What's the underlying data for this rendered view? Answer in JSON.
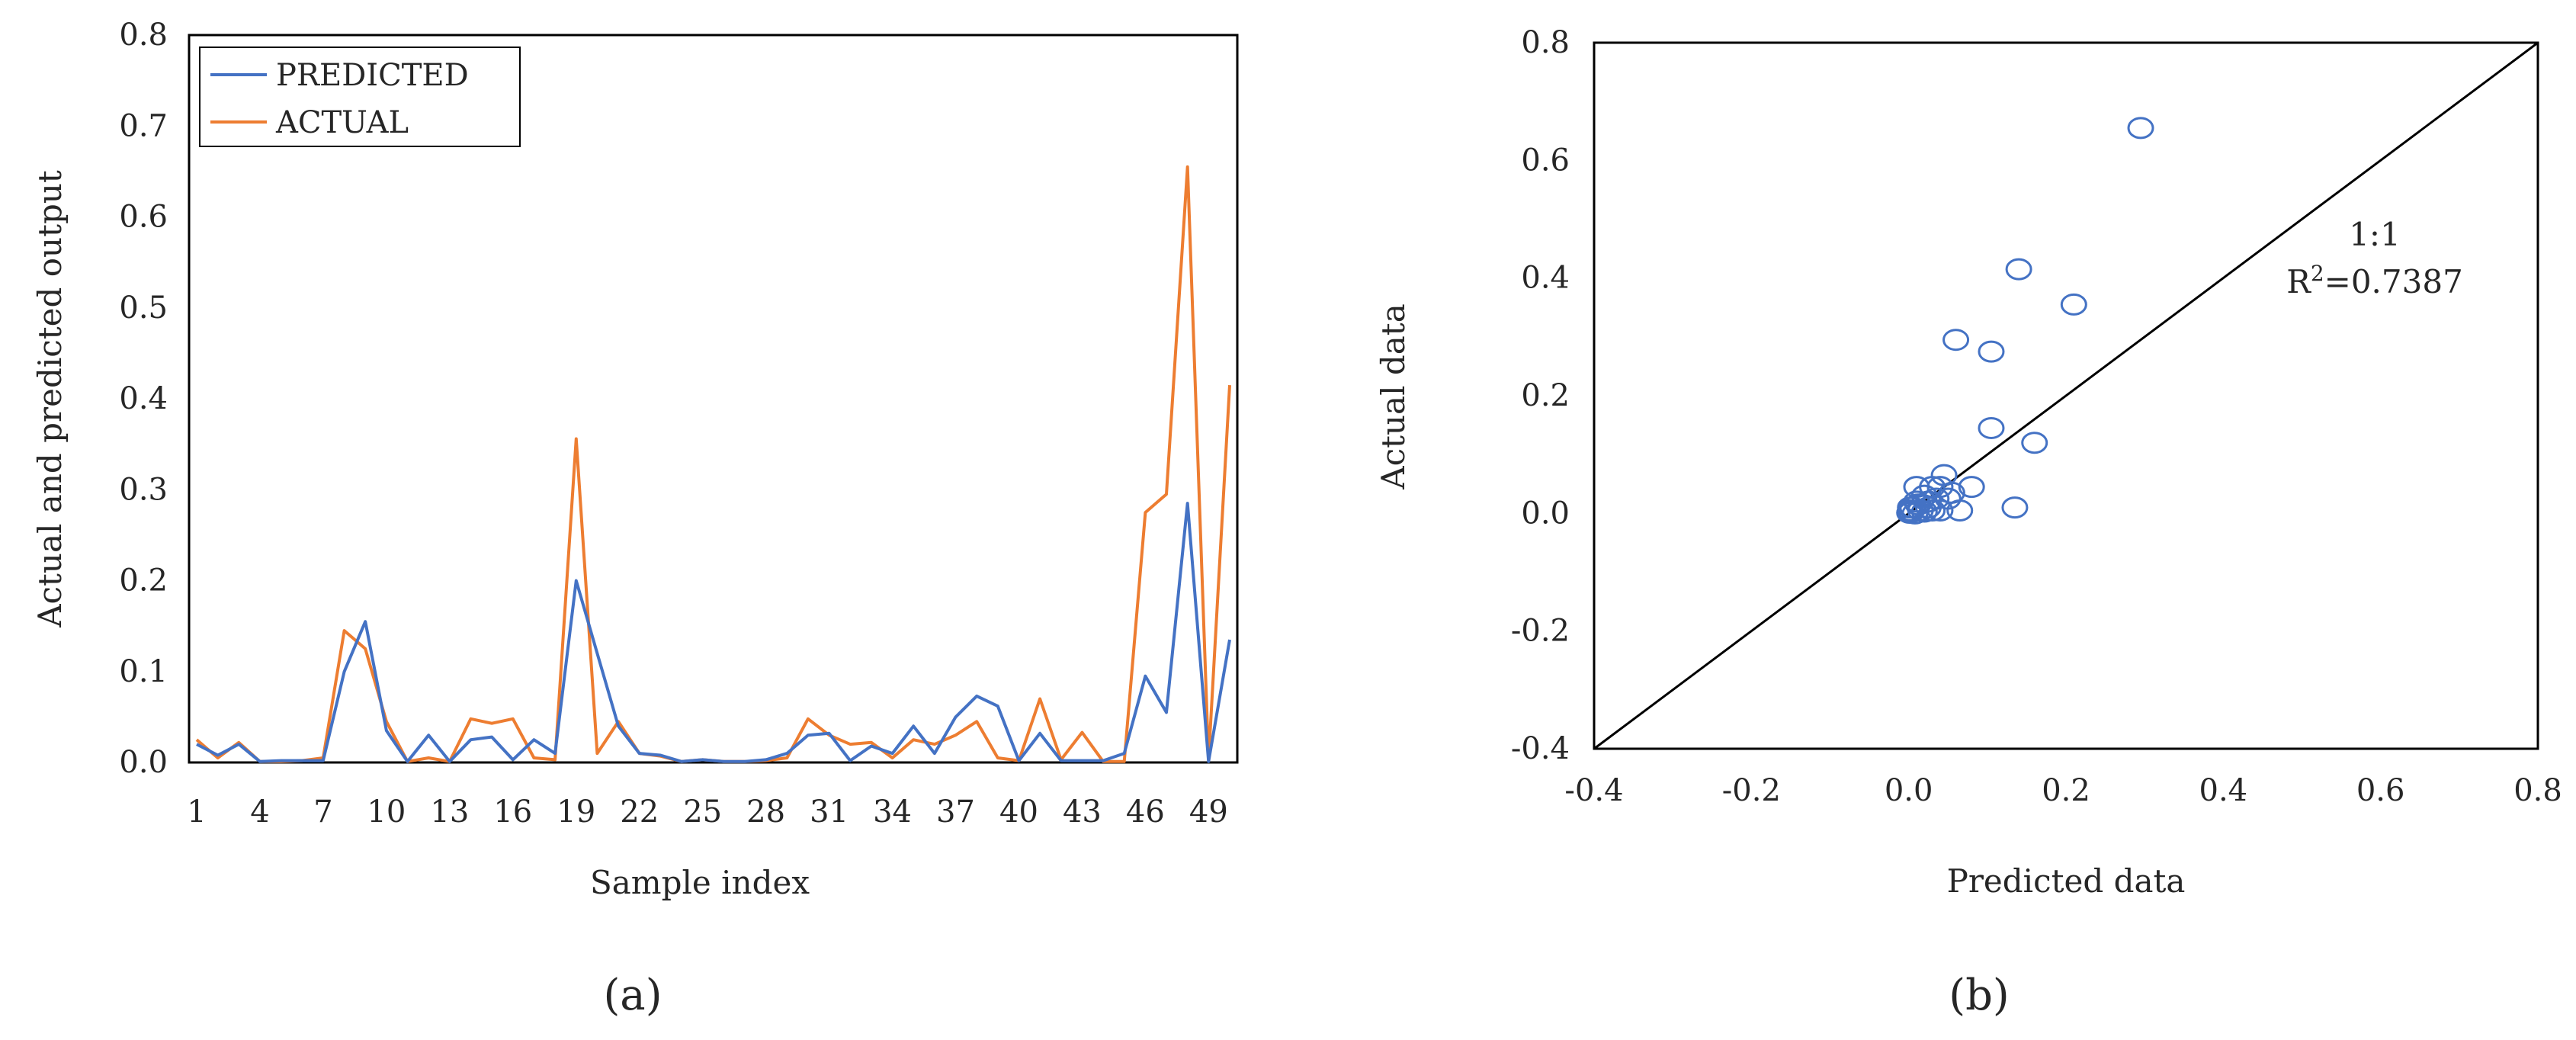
{
  "colors": {
    "predicted": "#4472C4",
    "actual": "#ED7D31",
    "axis": "#000000",
    "text": "#262626"
  },
  "chart_data": [
    {
      "type": "line",
      "panel_label": "(a)",
      "xlabel": "Sample index",
      "ylabel": "Actual and predicted output",
      "xlim": [
        1,
        50
      ],
      "ylim": [
        0,
        0.8
      ],
      "x_tick_values": [
        1,
        4,
        7,
        10,
        13,
        16,
        19,
        22,
        25,
        28,
        31,
        34,
        37,
        40,
        43,
        46,
        49
      ],
      "x_tick_labels": [
        "1",
        "4",
        "7",
        "10",
        "13",
        "16",
        "19",
        "22",
        "25",
        "28",
        "31",
        "34",
        "37",
        "40",
        "43",
        "46",
        "49"
      ],
      "y_tick_values": [
        0,
        0.1,
        0.2,
        0.3,
        0.4,
        0.5,
        0.6,
        0.7,
        0.8
      ],
      "y_tick_labels": [
        "0.0",
        "0.1",
        "0.2",
        "0.3",
        "0.4",
        "0.5",
        "0.6",
        "0.7",
        "0.8"
      ],
      "legend_position": "top-left",
      "x": [
        1,
        2,
        3,
        4,
        5,
        6,
        7,
        8,
        9,
        10,
        11,
        12,
        13,
        14,
        15,
        16,
        17,
        18,
        19,
        20,
        21,
        22,
        23,
        24,
        25,
        26,
        27,
        28,
        29,
        30,
        31,
        32,
        33,
        34,
        35,
        36,
        37,
        38,
        39,
        40,
        41,
        42,
        43,
        44,
        45,
        46,
        47,
        48,
        49,
        50
      ],
      "series": [
        {
          "name": "PREDICTED",
          "values": [
            0.02,
            0.008,
            0.02,
            0.001,
            0.002,
            0.002,
            0.002,
            0.1,
            0.155,
            0.035,
            0.001,
            0.03,
            0.001,
            0.025,
            0.028,
            0.003,
            0.025,
            0.01,
            0.2,
            0.12,
            0.04,
            0.01,
            0.008,
            0.001,
            0.003,
            0.001,
            0.001,
            0.003,
            0.01,
            0.03,
            0.032,
            0.002,
            0.018,
            0.01,
            0.04,
            0.01,
            0.05,
            0.073,
            0.062,
            0.002,
            0.032,
            0.002,
            0.002,
            0.002,
            0.01,
            0.095,
            0.055,
            0.285,
            0.001,
            0.135
          ]
        },
        {
          "name": "ACTUAL",
          "values": [
            0.025,
            0.005,
            0.022,
            0.001,
            0.001,
            0.002,
            0.005,
            0.145,
            0.125,
            0.045,
            0.001,
            0.005,
            0.001,
            0.048,
            0.043,
            0.048,
            0.005,
            0.003,
            0.356,
            0.01,
            0.045,
            0.01,
            0.007,
            0.001,
            0.003,
            0.001,
            0.001,
            0.002,
            0.005,
            0.048,
            0.03,
            0.02,
            0.022,
            0.005,
            0.025,
            0.02,
            0.03,
            0.045,
            0.005,
            0.002,
            0.07,
            0.003,
            0.033,
            0.001,
            0.001,
            0.275,
            0.295,
            0.655,
            0.003,
            0.415
          ]
        }
      ]
    },
    {
      "type": "scatter",
      "panel_label": "(b)",
      "xlabel": "Predicted data",
      "ylabel": "Actual data",
      "xlim": [
        -0.4,
        0.8
      ],
      "ylim": [
        -0.4,
        0.8
      ],
      "x_tick_values": [
        -0.4,
        -0.2,
        0.0,
        0.2,
        0.4,
        0.6,
        0.8
      ],
      "x_tick_labels": [
        "-0.4",
        "-0.2",
        "0.0",
        "0.2",
        "0.4",
        "0.6",
        "0.8"
      ],
      "y_tick_values": [
        -0.4,
        -0.2,
        0.0,
        0.2,
        0.4,
        0.6,
        0.8
      ],
      "y_tick_labels": [
        "-0.4",
        "-0.2",
        "0.0",
        "0.2",
        "0.4",
        "0.6",
        "0.8"
      ],
      "reference_line": {
        "from": [
          -0.4,
          -0.4
        ],
        "to": [
          0.8,
          0.8
        ],
        "label": "1:1"
      },
      "annotation_r2_prefix": "R",
      "annotation_r2_sup": "2",
      "annotation_r2_value": "=0.7387",
      "points": [
        [
          0.295,
          0.655
        ],
        [
          0.14,
          0.415
        ],
        [
          0.21,
          0.355
        ],
        [
          0.06,
          0.295
        ],
        [
          0.105,
          0.275
        ],
        [
          0.105,
          0.145
        ],
        [
          0.16,
          0.12
        ],
        [
          0.135,
          0.01
        ],
        [
          0.08,
          0.045
        ],
        [
          0.065,
          0.005
        ],
        [
          0.055,
          0.035
        ],
        [
          0.045,
          0.065
        ],
        [
          0.04,
          0.045
        ],
        [
          0.035,
          0.025
        ],
        [
          0.03,
          0.045
        ],
        [
          0.025,
          0.01
        ],
        [
          0.02,
          0.03
        ],
        [
          0.015,
          0.005
        ],
        [
          0.01,
          0.045
        ],
        [
          0.01,
          0.02
        ],
        [
          0.005,
          0.01
        ],
        [
          0.003,
          0.002
        ],
        [
          0.002,
          0.005
        ],
        [
          0.008,
          0.0
        ],
        [
          0.012,
          0.015
        ],
        [
          0.03,
          0.005
        ],
        [
          0.04,
          0.005
        ],
        [
          0.05,
          0.025
        ],
        [
          0.001,
          0.001
        ],
        [
          0.02,
          0.003
        ],
        [
          0.025,
          0.02
        ],
        [
          0.002,
          0.01
        ]
      ]
    }
  ]
}
